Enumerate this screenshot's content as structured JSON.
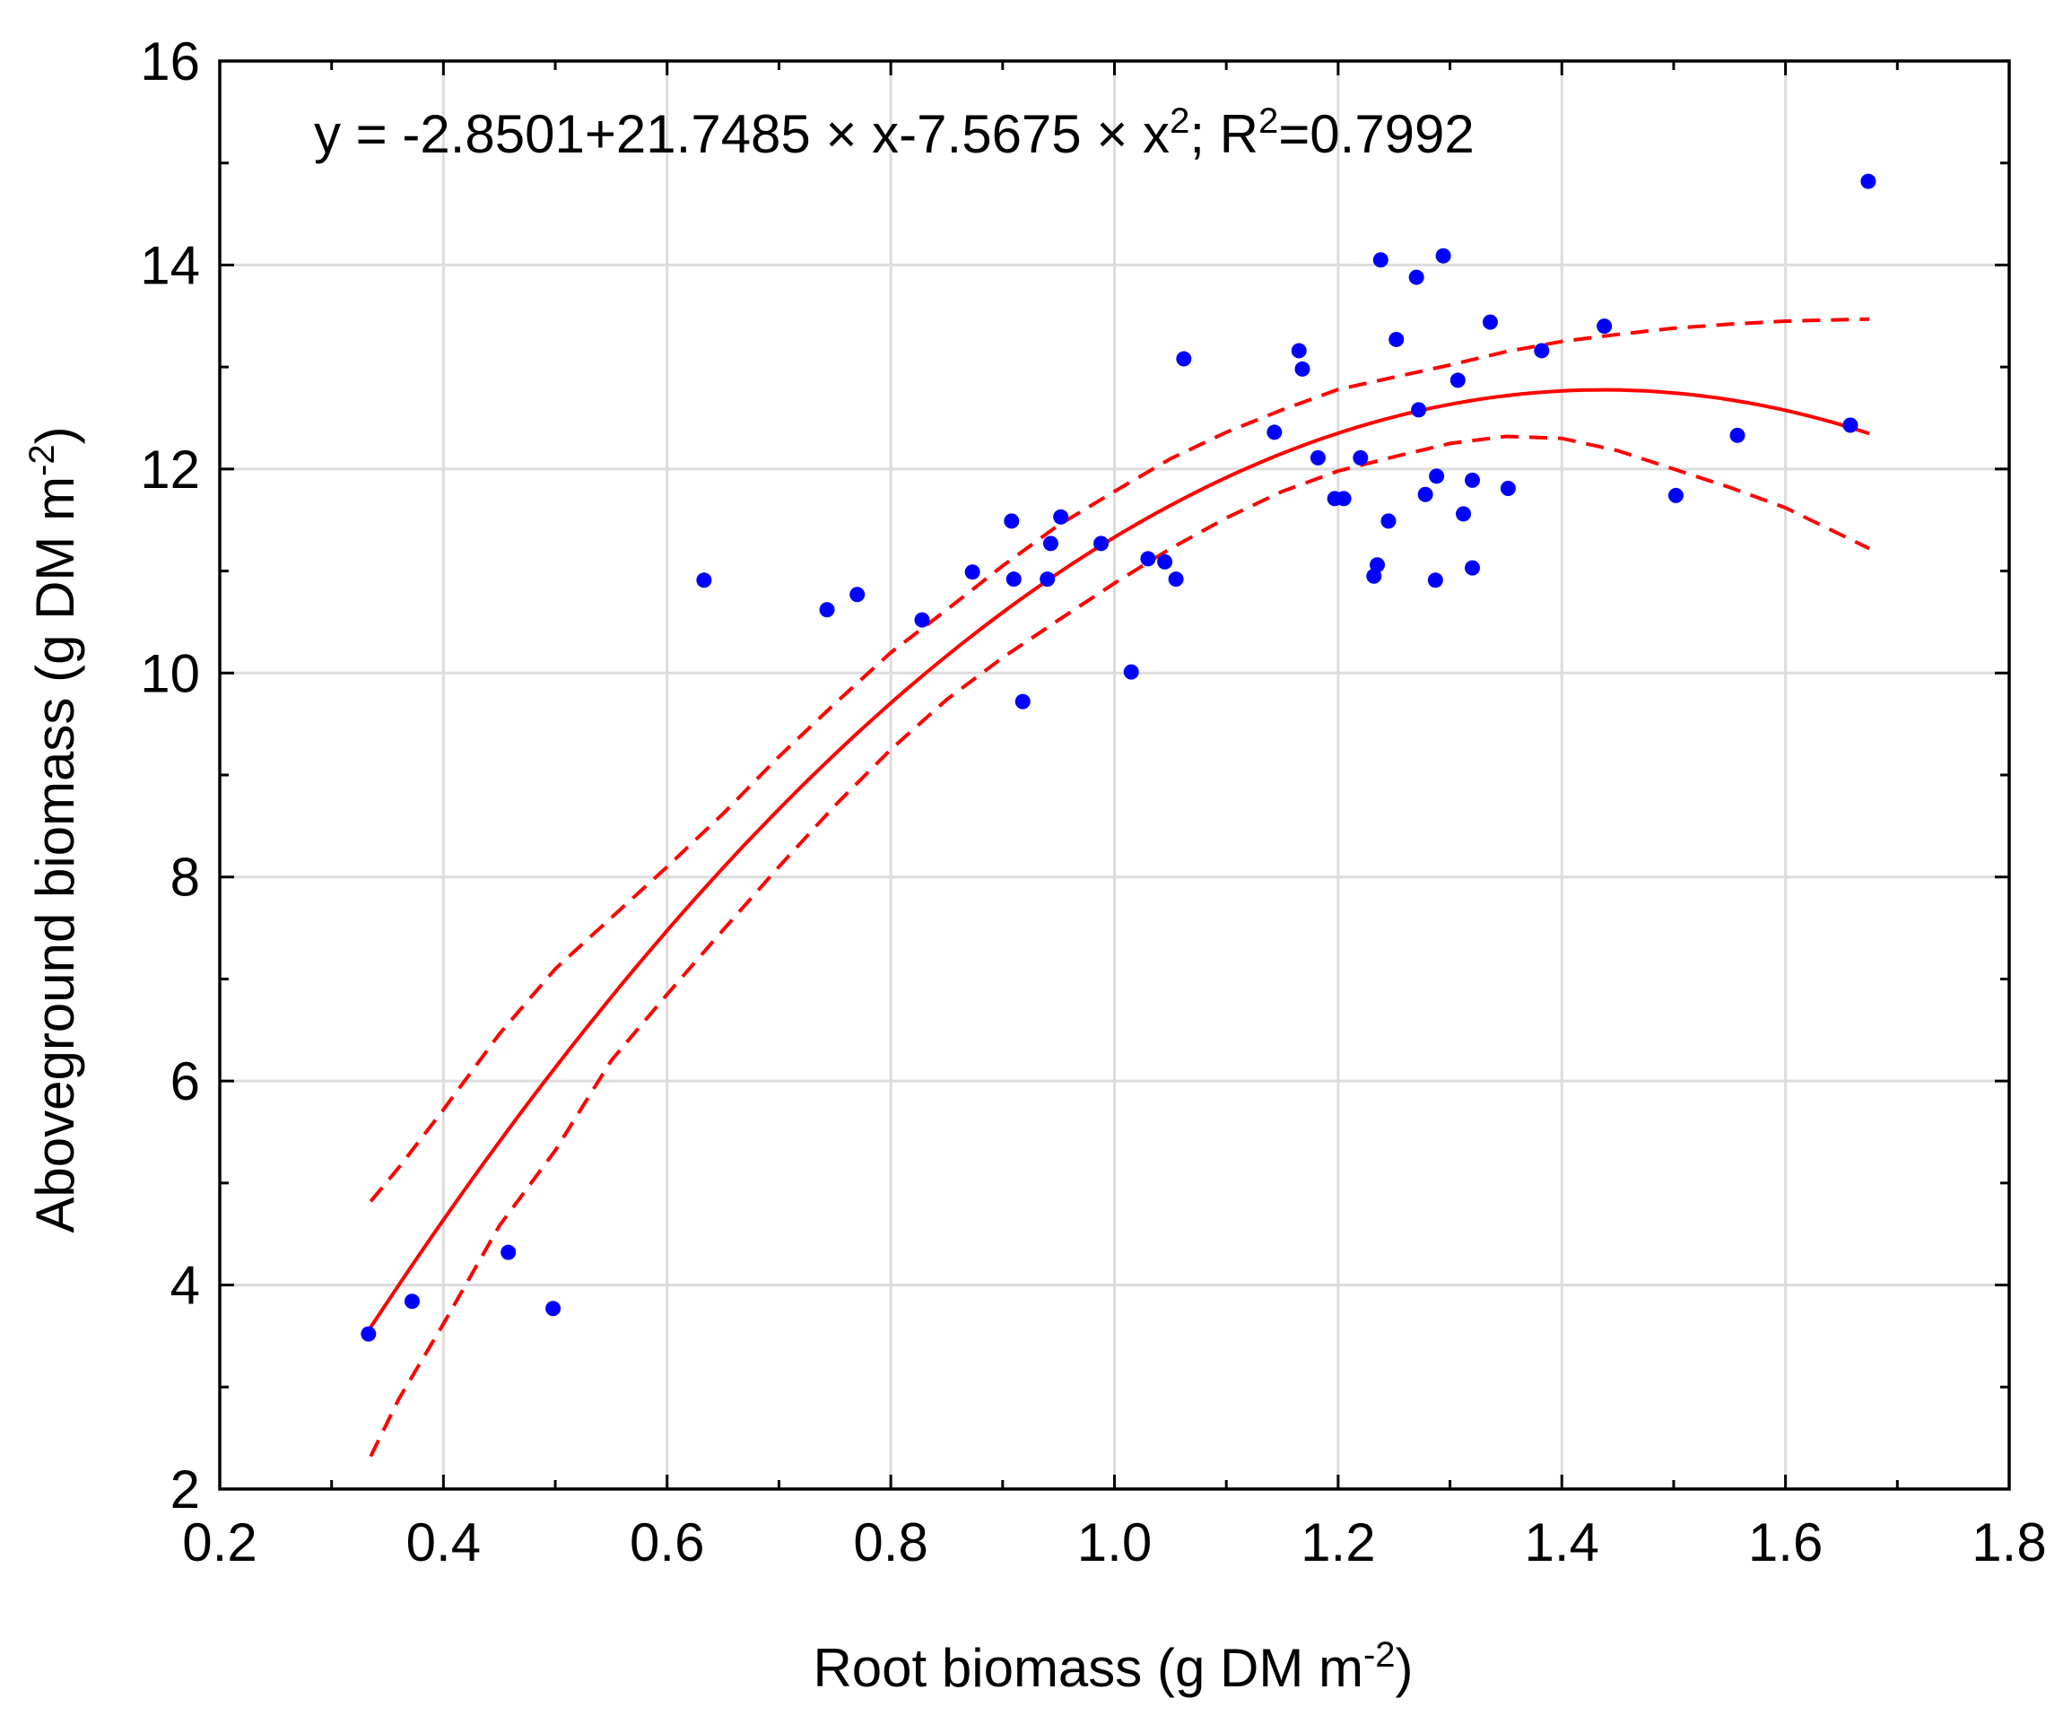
{
  "chart_data": {
    "type": "scatter",
    "title": "",
    "equation": {
      "prefix": "y = -2.8501+21.7485 × x-7.5675 × x",
      "x_exponent": "2",
      "mid": "; R",
      "r_exponent": "2",
      "suffix": "=0.7992"
    },
    "fit": {
      "intercept": -2.8501,
      "linear": 21.7485,
      "quadratic": -7.5675,
      "r_squared": 0.7992
    },
    "xlabel": {
      "main": "Root biomass (g DM m",
      "sup": "-2",
      "close": ")"
    },
    "ylabel": {
      "main": "Aboveground biomass (g DM m",
      "sup": "-2",
      "close": ")"
    },
    "xlim": [
      0.2,
      1.8
    ],
    "ylim": [
      2,
      16
    ],
    "x_ticks": [
      {
        "value": 0.2,
        "label": "0.2"
      },
      {
        "value": 0.4,
        "label": "0.4"
      },
      {
        "value": 0.6,
        "label": "0.6"
      },
      {
        "value": 0.8,
        "label": "0.8"
      },
      {
        "value": 1.0,
        "label": "1.0"
      },
      {
        "value": 1.2,
        "label": "1.2"
      },
      {
        "value": 1.4,
        "label": "1.4"
      },
      {
        "value": 1.6,
        "label": "1.6"
      },
      {
        "value": 1.8,
        "label": "1.8"
      }
    ],
    "y_ticks": [
      {
        "value": 2,
        "label": "2"
      },
      {
        "value": 4,
        "label": "4"
      },
      {
        "value": 6,
        "label": "6"
      },
      {
        "value": 8,
        "label": "8"
      },
      {
        "value": 10,
        "label": "10"
      },
      {
        "value": 12,
        "label": "12"
      },
      {
        "value": 14,
        "label": "14"
      },
      {
        "value": 16,
        "label": "16"
      }
    ],
    "x_minor_step": 0.1,
    "y_minor_step": 1,
    "fit_x_range": [
      0.335,
      1.675
    ],
    "grid": true,
    "colors": {
      "points": "#0000ff",
      "fit": "#ff0000",
      "confidence": "#ff0000",
      "grid": "#dcdcdc"
    },
    "points": [
      {
        "x": 0.333,
        "y": 3.52
      },
      {
        "x": 0.372,
        "y": 3.84
      },
      {
        "x": 0.458,
        "y": 4.32
      },
      {
        "x": 0.498,
        "y": 3.77
      },
      {
        "x": 0.633,
        "y": 10.91
      },
      {
        "x": 0.743,
        "y": 10.62
      },
      {
        "x": 0.77,
        "y": 10.77
      },
      {
        "x": 0.828,
        "y": 10.52
      },
      {
        "x": 0.873,
        "y": 10.99
      },
      {
        "x": 0.908,
        "y": 11.49
      },
      {
        "x": 0.91,
        "y": 10.92
      },
      {
        "x": 0.918,
        "y": 9.72
      },
      {
        "x": 0.94,
        "y": 10.92
      },
      {
        "x": 0.943,
        "y": 11.27
      },
      {
        "x": 0.952,
        "y": 11.53
      },
      {
        "x": 0.988,
        "y": 11.27
      },
      {
        "x": 1.015,
        "y": 10.01
      },
      {
        "x": 1.03,
        "y": 11.12
      },
      {
        "x": 1.045,
        "y": 11.09
      },
      {
        "x": 1.055,
        "y": 10.92
      },
      {
        "x": 1.062,
        "y": 13.08
      },
      {
        "x": 1.143,
        "y": 12.36
      },
      {
        "x": 1.165,
        "y": 13.16
      },
      {
        "x": 1.168,
        "y": 12.98
      },
      {
        "x": 1.182,
        "y": 12.11
      },
      {
        "x": 1.197,
        "y": 11.71
      },
      {
        "x": 1.205,
        "y": 11.71
      },
      {
        "x": 1.22,
        "y": 12.11
      },
      {
        "x": 1.232,
        "y": 10.95
      },
      {
        "x": 1.235,
        "y": 11.06
      },
      {
        "x": 1.238,
        "y": 14.05
      },
      {
        "x": 1.245,
        "y": 11.49
      },
      {
        "x": 1.252,
        "y": 13.27
      },
      {
        "x": 1.27,
        "y": 13.88
      },
      {
        "x": 1.272,
        "y": 12.58
      },
      {
        "x": 1.278,
        "y": 11.75
      },
      {
        "x": 1.287,
        "y": 10.91
      },
      {
        "x": 1.288,
        "y": 11.93
      },
      {
        "x": 1.294,
        "y": 14.09
      },
      {
        "x": 1.307,
        "y": 12.87
      },
      {
        "x": 1.312,
        "y": 11.56
      },
      {
        "x": 1.32,
        "y": 11.89
      },
      {
        "x": 1.32,
        "y": 11.03
      },
      {
        "x": 1.336,
        "y": 13.44
      },
      {
        "x": 1.352,
        "y": 11.81
      },
      {
        "x": 1.382,
        "y": 13.16
      },
      {
        "x": 1.438,
        "y": 13.4
      },
      {
        "x": 1.502,
        "y": 11.74
      },
      {
        "x": 1.557,
        "y": 12.33
      },
      {
        "x": 1.658,
        "y": 12.43
      },
      {
        "x": 1.674,
        "y": 14.82
      }
    ],
    "confidence_upper": [
      {
        "x": 0.335,
        "y": 4.82
      },
      {
        "x": 0.36,
        "y": 5.15
      },
      {
        "x": 0.4,
        "y": 5.72
      },
      {
        "x": 0.45,
        "y": 6.46
      },
      {
        "x": 0.5,
        "y": 7.1
      },
      {
        "x": 0.55,
        "y": 7.6
      },
      {
        "x": 0.6,
        "y": 8.1
      },
      {
        "x": 0.65,
        "y": 8.62
      },
      {
        "x": 0.7,
        "y": 9.18
      },
      {
        "x": 0.75,
        "y": 9.7
      },
      {
        "x": 0.8,
        "y": 10.2
      },
      {
        "x": 0.85,
        "y": 10.62
      },
      {
        "x": 0.9,
        "y": 11.05
      },
      {
        "x": 0.95,
        "y": 11.45
      },
      {
        "x": 1.0,
        "y": 11.78
      },
      {
        "x": 1.05,
        "y": 12.1
      },
      {
        "x": 1.1,
        "y": 12.36
      },
      {
        "x": 1.15,
        "y": 12.58
      },
      {
        "x": 1.2,
        "y": 12.78
      },
      {
        "x": 1.25,
        "y": 12.9
      },
      {
        "x": 1.3,
        "y": 13.02
      },
      {
        "x": 1.35,
        "y": 13.15
      },
      {
        "x": 1.4,
        "y": 13.25
      },
      {
        "x": 1.45,
        "y": 13.32
      },
      {
        "x": 1.5,
        "y": 13.38
      },
      {
        "x": 1.55,
        "y": 13.42
      },
      {
        "x": 1.6,
        "y": 13.45
      },
      {
        "x": 1.675,
        "y": 13.47
      }
    ],
    "confidence_lower": [
      {
        "x": 0.335,
        "y": 2.32
      },
      {
        "x": 0.36,
        "y": 2.88
      },
      {
        "x": 0.4,
        "y": 3.62
      },
      {
        "x": 0.45,
        "y": 4.58
      },
      {
        "x": 0.5,
        "y": 5.32
      },
      {
        "x": 0.55,
        "y": 6.2
      },
      {
        "x": 0.6,
        "y": 6.85
      },
      {
        "x": 0.65,
        "y": 7.48
      },
      {
        "x": 0.7,
        "y": 8.1
      },
      {
        "x": 0.75,
        "y": 8.7
      },
      {
        "x": 0.8,
        "y": 9.25
      },
      {
        "x": 0.85,
        "y": 9.74
      },
      {
        "x": 0.9,
        "y": 10.15
      },
      {
        "x": 0.95,
        "y": 10.52
      },
      {
        "x": 1.0,
        "y": 10.88
      },
      {
        "x": 1.05,
        "y": 11.22
      },
      {
        "x": 1.1,
        "y": 11.52
      },
      {
        "x": 1.15,
        "y": 11.78
      },
      {
        "x": 1.2,
        "y": 11.98
      },
      {
        "x": 1.25,
        "y": 12.12
      },
      {
        "x": 1.3,
        "y": 12.25
      },
      {
        "x": 1.35,
        "y": 12.32
      },
      {
        "x": 1.4,
        "y": 12.3
      },
      {
        "x": 1.45,
        "y": 12.18
      },
      {
        "x": 1.5,
        "y": 12.0
      },
      {
        "x": 1.55,
        "y": 11.82
      },
      {
        "x": 1.6,
        "y": 11.62
      },
      {
        "x": 1.675,
        "y": 11.22
      }
    ]
  }
}
